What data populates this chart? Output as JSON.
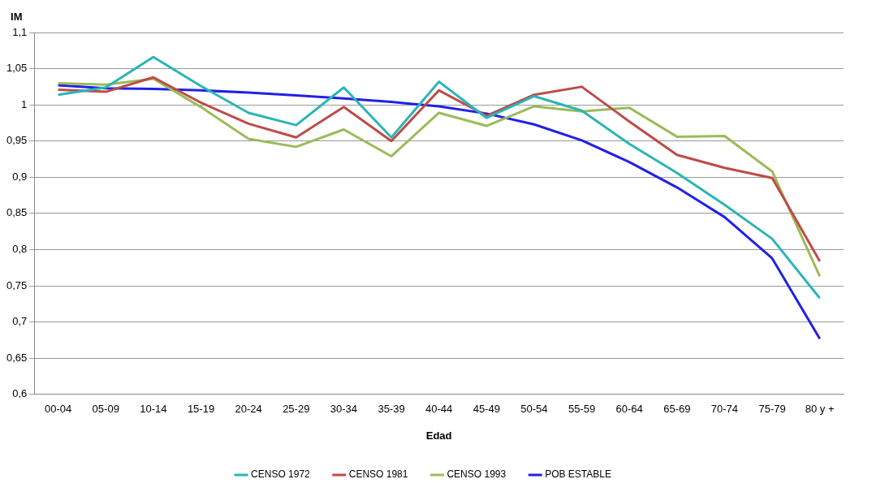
{
  "chart_data": {
    "type": "line",
    "ylabel": "IM",
    "xlabel": "Edad",
    "categories": [
      "00-04",
      "05-09",
      "10-14",
      "15-19",
      "20-24",
      "25-29",
      "30-34",
      "35-39",
      "40-44",
      "45-49",
      "50-54",
      "55-59",
      "60-64",
      "65-69",
      "70-74",
      "75-79",
      "80 y +"
    ],
    "series": [
      {
        "name": "CENSO 1972",
        "color": "#2ab5b5",
        "values": [
          1.014,
          1.024,
          1.066,
          1.026,
          0.989,
          0.972,
          1.024,
          0.955,
          1.032,
          0.982,
          1.012,
          0.992,
          0.946,
          0.906,
          0.862,
          0.815,
          0.733
        ]
      },
      {
        "name": "CENSO 1981",
        "color": "#be4b48",
        "values": [
          1.021,
          1.018,
          1.038,
          1.003,
          0.974,
          0.955,
          0.997,
          0.95,
          1.02,
          0.985,
          1.014,
          1.025,
          0.977,
          0.931,
          0.913,
          0.899,
          0.784
        ]
      },
      {
        "name": "CENSO 1993",
        "color": "#9bbb59",
        "values": [
          1.03,
          1.028,
          1.036,
          0.997,
          0.953,
          0.942,
          0.966,
          0.929,
          0.989,
          0.971,
          0.998,
          0.991,
          0.996,
          0.956,
          0.957,
          0.908,
          0.763
        ]
      },
      {
        "name": "POB ESTABLE",
        "color": "#2020e8",
        "values": [
          1.027,
          1.023,
          1.022,
          1.02,
          1.017,
          1.013,
          1.009,
          1.004,
          0.998,
          0.988,
          0.973,
          0.951,
          0.921,
          0.886,
          0.845,
          0.788,
          0.677
        ]
      }
    ],
    "ylim": [
      0.6,
      1.1
    ],
    "yticks": [
      {
        "value": 0.6,
        "label": "0,6"
      },
      {
        "value": 0.65,
        "label": "0,65"
      },
      {
        "value": 0.7,
        "label": "0,7"
      },
      {
        "value": 0.75,
        "label": "0,75"
      },
      {
        "value": 0.8,
        "label": "0,8"
      },
      {
        "value": 0.85,
        "label": "0,85"
      },
      {
        "value": 0.9,
        "label": "0,9"
      },
      {
        "value": 0.95,
        "label": "0,95"
      },
      {
        "value": 1,
        "label": "1"
      },
      {
        "value": 1.05,
        "label": "1,05"
      },
      {
        "value": 1.1,
        "label": "1,1"
      }
    ],
    "grid": "y",
    "legend": "bottom",
    "marker": "none",
    "line_style": "solid"
  }
}
